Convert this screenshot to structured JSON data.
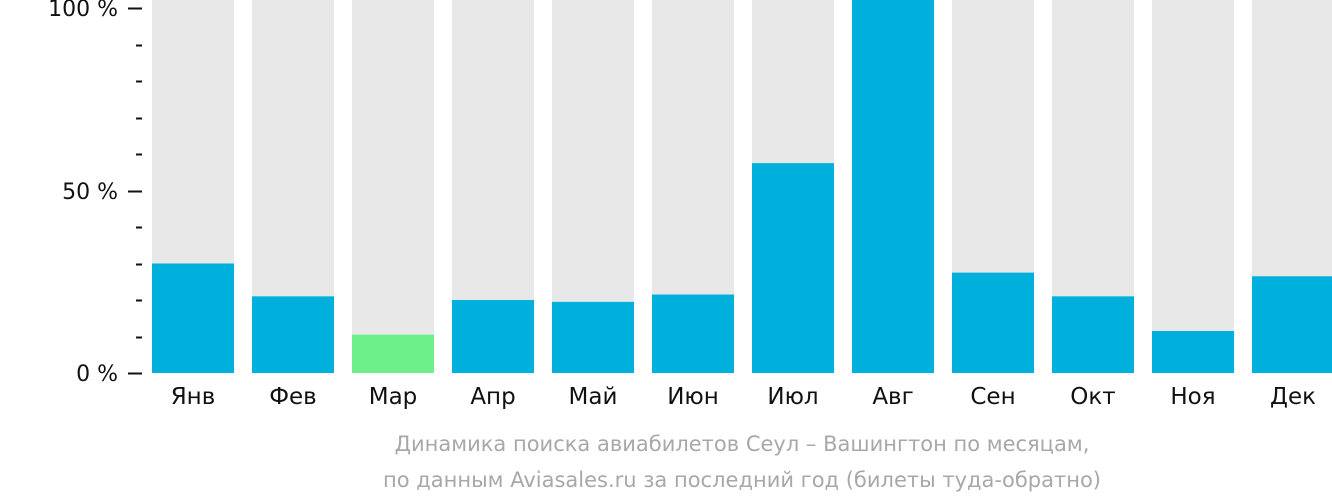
{
  "chart_data": {
    "type": "bar",
    "categories": [
      "Янв",
      "Фев",
      "Мар",
      "Апр",
      "Май",
      "Июн",
      "Июл",
      "Авг",
      "Сен",
      "Окт",
      "Ноя",
      "Дек"
    ],
    "values": [
      30,
      21,
      10.5,
      20,
      19.5,
      21.5,
      57.5,
      100,
      27.5,
      21,
      11.5,
      26.5
    ],
    "max_value": 100,
    "ylim": [
      0,
      100
    ],
    "yticks": [
      {
        "value": 0,
        "label": "0 %"
      },
      {
        "value": 50,
        "label": "50 %"
      },
      {
        "value": 100,
        "label": "100 %"
      }
    ],
    "minor_tick_step": 10,
    "highlight_index": 2,
    "colors": {
      "bar": "#00b0dc",
      "highlight": "#6def8a",
      "background_bar": "#e8e8e8",
      "axis": "#111111",
      "tick_label": "#111111",
      "caption": "#a8a8a8"
    },
    "grid": false,
    "legend": "none"
  },
  "caption": {
    "line1": "Динамика поиска авиабилетов Сеул – Вашингтон по месяцам,",
    "line2": "по данным Aviasales.ru за последний год (билеты туда-обратно)"
  }
}
